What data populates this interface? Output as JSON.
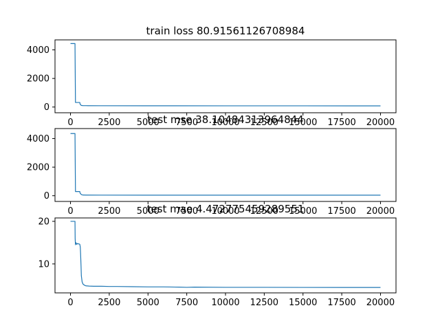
{
  "chart_data": [
    {
      "type": "line",
      "title": "train loss 80.91561126708984",
      "xlim": [
        -1000,
        21000
      ],
      "ylim": [
        -400,
        4700
      ],
      "xticks": [
        0,
        2500,
        5000,
        7500,
        10000,
        12500,
        15000,
        17500,
        20000
      ],
      "xtick_labels": [
        "0",
        "2500",
        "5000",
        "7500",
        "10000",
        "12500",
        "15000",
        "17500",
        "20000"
      ],
      "yticks": [
        0,
        2000,
        4000
      ],
      "ytick_labels": [
        "0",
        "2000",
        "4000"
      ],
      "grid": false,
      "series": [
        {
          "color": "#1f77b4",
          "x": [
            0,
            150,
            290,
            300,
            320,
            600,
            620,
            700,
            800,
            1000,
            2000,
            5000,
            10000,
            15000,
            20000
          ],
          "y": [
            4440,
            4440,
            4440,
            3000,
            320,
            320,
            200,
            110,
            100,
            95,
            90,
            88,
            85,
            83,
            81
          ]
        }
      ]
    },
    {
      "type": "line",
      "title": "test mse 38.10484313964844",
      "xlim": [
        -1000,
        21000
      ],
      "ylim": [
        -400,
        4700
      ],
      "xticks": [
        0,
        2500,
        5000,
        7500,
        10000,
        12500,
        15000,
        17500,
        20000
      ],
      "xtick_labels": [
        "0",
        "2500",
        "5000",
        "7500",
        "10000",
        "12500",
        "15000",
        "17500",
        "20000"
      ],
      "yticks": [
        0,
        2000,
        4000
      ],
      "ytick_labels": [
        "0",
        "2000",
        "4000"
      ],
      "grid": false,
      "series": [
        {
          "color": "#1f77b4",
          "x": [
            0,
            150,
            290,
            300,
            320,
            600,
            620,
            700,
            800,
            1000,
            2000,
            5000,
            10000,
            15000,
            20000
          ],
          "y": [
            4350,
            4350,
            4350,
            3000,
            290,
            290,
            180,
            80,
            50,
            45,
            42,
            40,
            39,
            38.5,
            38.1
          ]
        }
      ]
    },
    {
      "type": "line",
      "title": "test mae 4.472775459289551",
      "xlim": [
        -1000,
        21000
      ],
      "ylim": [
        3.2,
        20.8
      ],
      "xticks": [
        0,
        2500,
        5000,
        7500,
        10000,
        12500,
        15000,
        17500,
        20000
      ],
      "xtick_labels": [
        "0",
        "2500",
        "5000",
        "7500",
        "10000",
        "12500",
        "15000",
        "17500",
        "20000"
      ],
      "yticks": [
        10,
        20
      ],
      "ytick_labels": [
        "10",
        "20"
      ],
      "grid": false,
      "series": [
        {
          "color": "#1f77b4",
          "x": [
            0,
            150,
            290,
            300,
            320,
            350,
            400,
            450,
            500,
            550,
            600,
            630,
            650,
            680,
            700,
            750,
            800,
            900,
            1000,
            1200,
            1500,
            2000,
            2500,
            3000,
            4000,
            5000,
            6000,
            7000,
            7500,
            8000,
            10000,
            12500,
            15000,
            17500,
            20000
          ],
          "y": [
            20,
            20,
            20,
            16,
            14.5,
            15,
            14.6,
            14.8,
            14.7,
            14.7,
            14.6,
            14.0,
            12.5,
            9.5,
            7.2,
            5.8,
            5.3,
            5.0,
            4.85,
            4.8,
            4.75,
            4.75,
            4.7,
            4.7,
            4.65,
            4.6,
            4.6,
            4.55,
            4.5,
            4.55,
            4.5,
            4.5,
            4.48,
            4.47,
            4.47
          ]
        }
      ]
    }
  ]
}
